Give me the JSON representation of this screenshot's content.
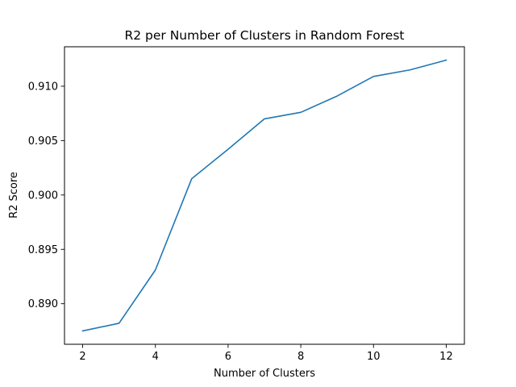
{
  "chart_data": {
    "type": "line",
    "title": "R2 per Number of Clusters in Random Forest",
    "xlabel": "Number of Clusters",
    "ylabel": "R2 Score",
    "x": [
      2,
      3,
      4,
      5,
      6,
      7,
      8,
      9,
      10,
      11,
      12
    ],
    "series": [
      {
        "values": [
          0.8875,
          0.8882,
          0.8931,
          0.9015,
          0.9042,
          0.907,
          0.9076,
          0.9091,
          0.9109,
          0.9115,
          0.9124
        ],
        "color": "#1f77b4"
      }
    ],
    "xlim": [
      1.5,
      12.5
    ],
    "ylim": [
      0.88627,
      0.91363
    ],
    "xticks": [
      2,
      4,
      6,
      8,
      10,
      12
    ],
    "xtick_labels": [
      "2",
      "4",
      "6",
      "8",
      "10",
      "12"
    ],
    "yticks": [
      0.89,
      0.895,
      0.9,
      0.905,
      0.91
    ],
    "ytick_labels": [
      "0.890",
      "0.895",
      "0.900",
      "0.905",
      "0.910"
    ],
    "grid": false,
    "legend": null
  }
}
